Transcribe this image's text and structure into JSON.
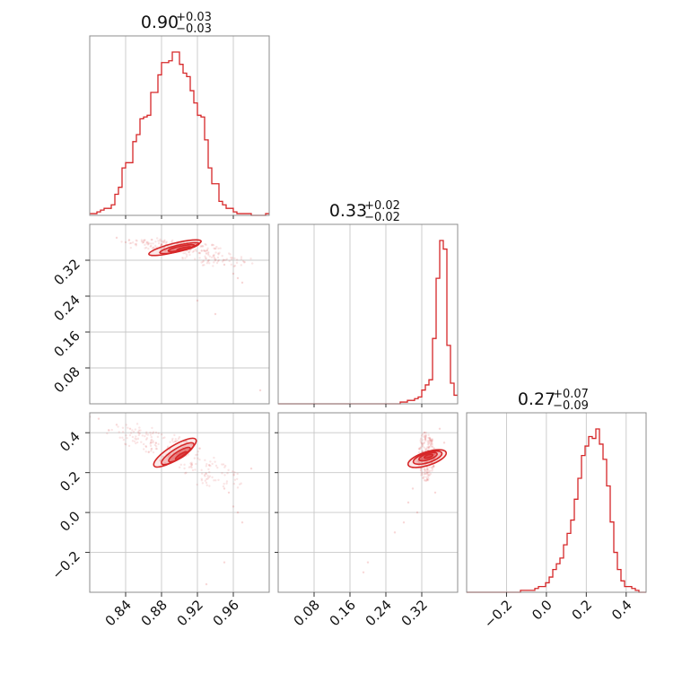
{
  "chart_data": {
    "type": "corner",
    "color": "#d62728",
    "parameters": [
      {
        "title_median": "0.90",
        "title_plus": "+0.03",
        "title_minus": "−0.03",
        "range": [
          0.8,
          1.0
        ],
        "ticks": [
          0.84,
          0.88,
          0.92,
          0.96
        ],
        "tick_labels": [
          "0.84",
          "0.88",
          "0.92",
          "0.96"
        ],
        "histogram": [
          0.01,
          0.01,
          0.02,
          0.03,
          0.04,
          0.04,
          0.06,
          0.12,
          0.16,
          0.27,
          0.3,
          0.3,
          0.42,
          0.46,
          0.55,
          0.56,
          0.57,
          0.7,
          0.7,
          0.8,
          0.87,
          0.87,
          0.88,
          0.93,
          0.93,
          0.86,
          0.81,
          0.79,
          0.71,
          0.64,
          0.57,
          0.56,
          0.43,
          0.27,
          0.18,
          0.18,
          0.08,
          0.06,
          0.04,
          0.04,
          0.02,
          0.01,
          0.01,
          0.01,
          0.01,
          0.0,
          0.0,
          0.0,
          0.0,
          0.01
        ]
      },
      {
        "title_median": "0.33",
        "title_plus": "+0.02",
        "title_minus": "−0.02",
        "range": [
          0.0,
          0.4
        ],
        "ticks": [
          0.08,
          0.16,
          0.24,
          0.32
        ],
        "tick_labels": [
          "0.08",
          "0.16",
          "0.24",
          "0.32"
        ],
        "histogram": [
          0.0,
          0.0,
          0.0,
          0.0,
          0.0,
          0.0,
          0.0,
          0.0,
          0.0,
          0.0,
          0.0,
          0.0,
          0.0,
          0.0,
          0.0,
          0.0,
          0.0,
          0.0,
          0.0,
          0.0,
          0.0,
          0.0,
          0.0,
          0.0,
          0.0,
          0.0,
          0.0,
          0.0,
          0.0,
          0.0,
          0.0,
          0.0,
          0.0,
          0.0,
          0.01,
          0.01,
          0.02,
          0.02,
          0.03,
          0.04,
          0.08,
          0.11,
          0.14,
          0.38,
          0.73,
          0.95,
          0.9,
          0.34,
          0.12,
          0.05
        ]
      },
      {
        "title_median": "0.27",
        "title_plus": "+0.07",
        "title_minus": "−0.09",
        "range": [
          -0.4,
          0.5
        ],
        "ticks": [
          -0.2,
          0.0,
          0.2,
          0.4
        ],
        "tick_labels": [
          "−0.2",
          "0.0",
          "0.2",
          "0.4"
        ],
        "histogram": [
          0.0,
          0.0,
          0.0,
          0.0,
          0.0,
          0.0,
          0.0,
          0.0,
          0.0,
          0.0,
          0.0,
          0.0,
          0.0,
          0.0,
          0.0,
          0.01,
          0.01,
          0.01,
          0.01,
          0.02,
          0.03,
          0.03,
          0.05,
          0.08,
          0.12,
          0.15,
          0.18,
          0.25,
          0.31,
          0.38,
          0.49,
          0.6,
          0.72,
          0.77,
          0.82,
          0.81,
          0.86,
          0.78,
          0.7,
          0.56,
          0.37,
          0.21,
          0.12,
          0.06,
          0.03,
          0.03,
          0.02,
          0.01,
          0.0,
          0.0
        ]
      }
    ],
    "pairs": [
      {
        "x_param": 0,
        "y_param": 1,
        "centers": [
          [
            0.87,
            0.357
          ],
          [
            0.89,
            0.352
          ],
          [
            0.905,
            0.348
          ],
          [
            0.92,
            0.342
          ],
          [
            0.935,
            0.33
          ],
          [
            0.95,
            0.318
          ]
        ],
        "levels": [
          {
            "width_x": 0.06,
            "width_y": 0.02,
            "angle_deg": -14,
            "offset": [
              0.895,
              0.348
            ]
          },
          {
            "width_x": 0.045,
            "width_y": 0.014,
            "angle_deg": -13,
            "offset": [
              0.9,
              0.347
            ]
          },
          {
            "width_x": 0.03,
            "width_y": 0.009,
            "angle_deg": -12,
            "offset": [
              0.902,
              0.347
            ]
          },
          {
            "width_x": 0.016,
            "width_y": 0.005,
            "angle_deg": -12,
            "offset": [
              0.905,
              0.346
            ]
          }
        ],
        "points": [
          [
            0.83,
            0.37
          ],
          [
            0.84,
            0.36
          ],
          [
            0.86,
            0.36
          ],
          [
            0.88,
            0.355
          ],
          [
            0.91,
            0.348
          ],
          [
            0.93,
            0.335
          ],
          [
            0.95,
            0.31
          ],
          [
            0.96,
            0.29
          ],
          [
            0.965,
            0.28
          ],
          [
            0.92,
            0.23
          ],
          [
            0.94,
            0.2
          ],
          [
            0.99,
            0.03
          ],
          [
            0.87,
            0.34
          ],
          [
            0.89,
            0.34
          ],
          [
            0.97,
            0.27
          ]
        ]
      },
      {
        "x_param": 0,
        "y_param": 2,
        "centers": [
          [
            0.85,
            0.405
          ],
          [
            0.87,
            0.36
          ],
          [
            0.89,
            0.32
          ],
          [
            0.91,
            0.27
          ],
          [
            0.93,
            0.22
          ],
          [
            0.945,
            0.16
          ]
        ],
        "levels": [
          {
            "width_x": 0.055,
            "width_y": 0.07,
            "angle_deg": -32,
            "offset": [
              0.895,
              0.3
            ]
          },
          {
            "width_x": 0.042,
            "width_y": 0.052,
            "angle_deg": -32,
            "offset": [
              0.898,
              0.295
            ]
          },
          {
            "width_x": 0.028,
            "width_y": 0.035,
            "angle_deg": -32,
            "offset": [
              0.9,
              0.29
            ]
          },
          {
            "width_x": 0.015,
            "width_y": 0.018,
            "angle_deg": -32,
            "offset": [
              0.902,
              0.285
            ]
          }
        ],
        "points": [
          [
            0.8,
            0.48
          ],
          [
            0.81,
            0.47
          ],
          [
            0.83,
            0.44
          ],
          [
            0.845,
            0.42
          ],
          [
            0.95,
            0.12
          ],
          [
            0.955,
            0.1
          ],
          [
            0.96,
            0.03
          ],
          [
            0.965,
            0.0
          ],
          [
            0.97,
            -0.05
          ],
          [
            0.93,
            -0.36
          ],
          [
            0.95,
            -0.25
          ],
          [
            0.98,
            0.22
          ]
        ]
      },
      {
        "x_param": 1,
        "y_param": 2,
        "centers": [
          [
            0.33,
            0.28
          ]
        ],
        "levels": [
          {
            "width_x": 0.03,
            "width_y": 0.2,
            "angle_deg": 72,
            "offset": [
              0.332,
              0.27
            ]
          },
          {
            "width_x": 0.022,
            "width_y": 0.15,
            "angle_deg": 72,
            "offset": [
              0.333,
              0.275
            ]
          },
          {
            "width_x": 0.014,
            "width_y": 0.095,
            "angle_deg": 72,
            "offset": [
              0.334,
              0.28
            ]
          },
          {
            "width_x": 0.007,
            "width_y": 0.045,
            "angle_deg": 72,
            "offset": [
              0.335,
              0.282
            ]
          }
        ],
        "points": [
          [
            0.3,
            0.12
          ],
          [
            0.29,
            0.05
          ],
          [
            0.28,
            -0.05
          ],
          [
            0.26,
            -0.1
          ],
          [
            0.2,
            -0.25
          ],
          [
            0.19,
            -0.3
          ],
          [
            0.31,
            0.0
          ],
          [
            0.36,
            0.42
          ],
          [
            0.37,
            0.35
          ],
          [
            0.35,
            0.1
          ]
        ]
      }
    ]
  }
}
